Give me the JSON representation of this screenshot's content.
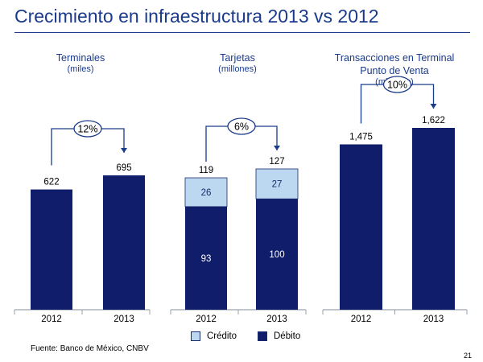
{
  "slide": {
    "title": "Crecimiento en infraestructura 2013 vs 2012",
    "source": "Fuente: Banco de México, CNBV",
    "page_number": "21"
  },
  "colors": {
    "dark_navy": "#0f1d6b",
    "light_blue": "#bcd8f0",
    "accent_blue": "#1a3a8c"
  },
  "legend": {
    "items": [
      {
        "label": "Crédito",
        "color": "#bcd8f0"
      },
      {
        "label": "Débito",
        "color": "#0f1d6b"
      }
    ]
  },
  "chart_data": [
    {
      "type": "bar",
      "title_lines": [
        "Terminales"
      ],
      "subtitle": "(miles)",
      "categories": [
        "2012",
        "2013"
      ],
      "values": [
        622,
        695
      ],
      "value_labels": [
        "622",
        "695"
      ],
      "growth_label": "12%",
      "ylim": [
        0,
        900
      ]
    },
    {
      "type": "bar",
      "stacked": true,
      "title_lines": [
        "Tarjetas"
      ],
      "subtitle": "(millones)",
      "categories": [
        "2012",
        "2013"
      ],
      "series": [
        {
          "name": "Débito",
          "values": [
            93,
            100
          ],
          "labels": [
            "93",
            "100"
          ]
        },
        {
          "name": "Crédito",
          "values": [
            26,
            27
          ],
          "labels": [
            "26",
            "27"
          ]
        }
      ],
      "totals": [
        119,
        127
      ],
      "total_labels": [
        "119",
        "127"
      ],
      "growth_label": "6%",
      "ylim": [
        0,
        160
      ]
    },
    {
      "type": "bar",
      "title_lines": [
        "Transacciones en Terminal",
        "Punto de Venta"
      ],
      "subtitle": "(millones)",
      "categories": [
        "2012",
        "2013"
      ],
      "values": [
        1475,
        1622
      ],
      "value_labels": [
        "1,475",
        "1,622"
      ],
      "growth_label": "10%",
      "ylim": [
        0,
        1800
      ]
    }
  ]
}
